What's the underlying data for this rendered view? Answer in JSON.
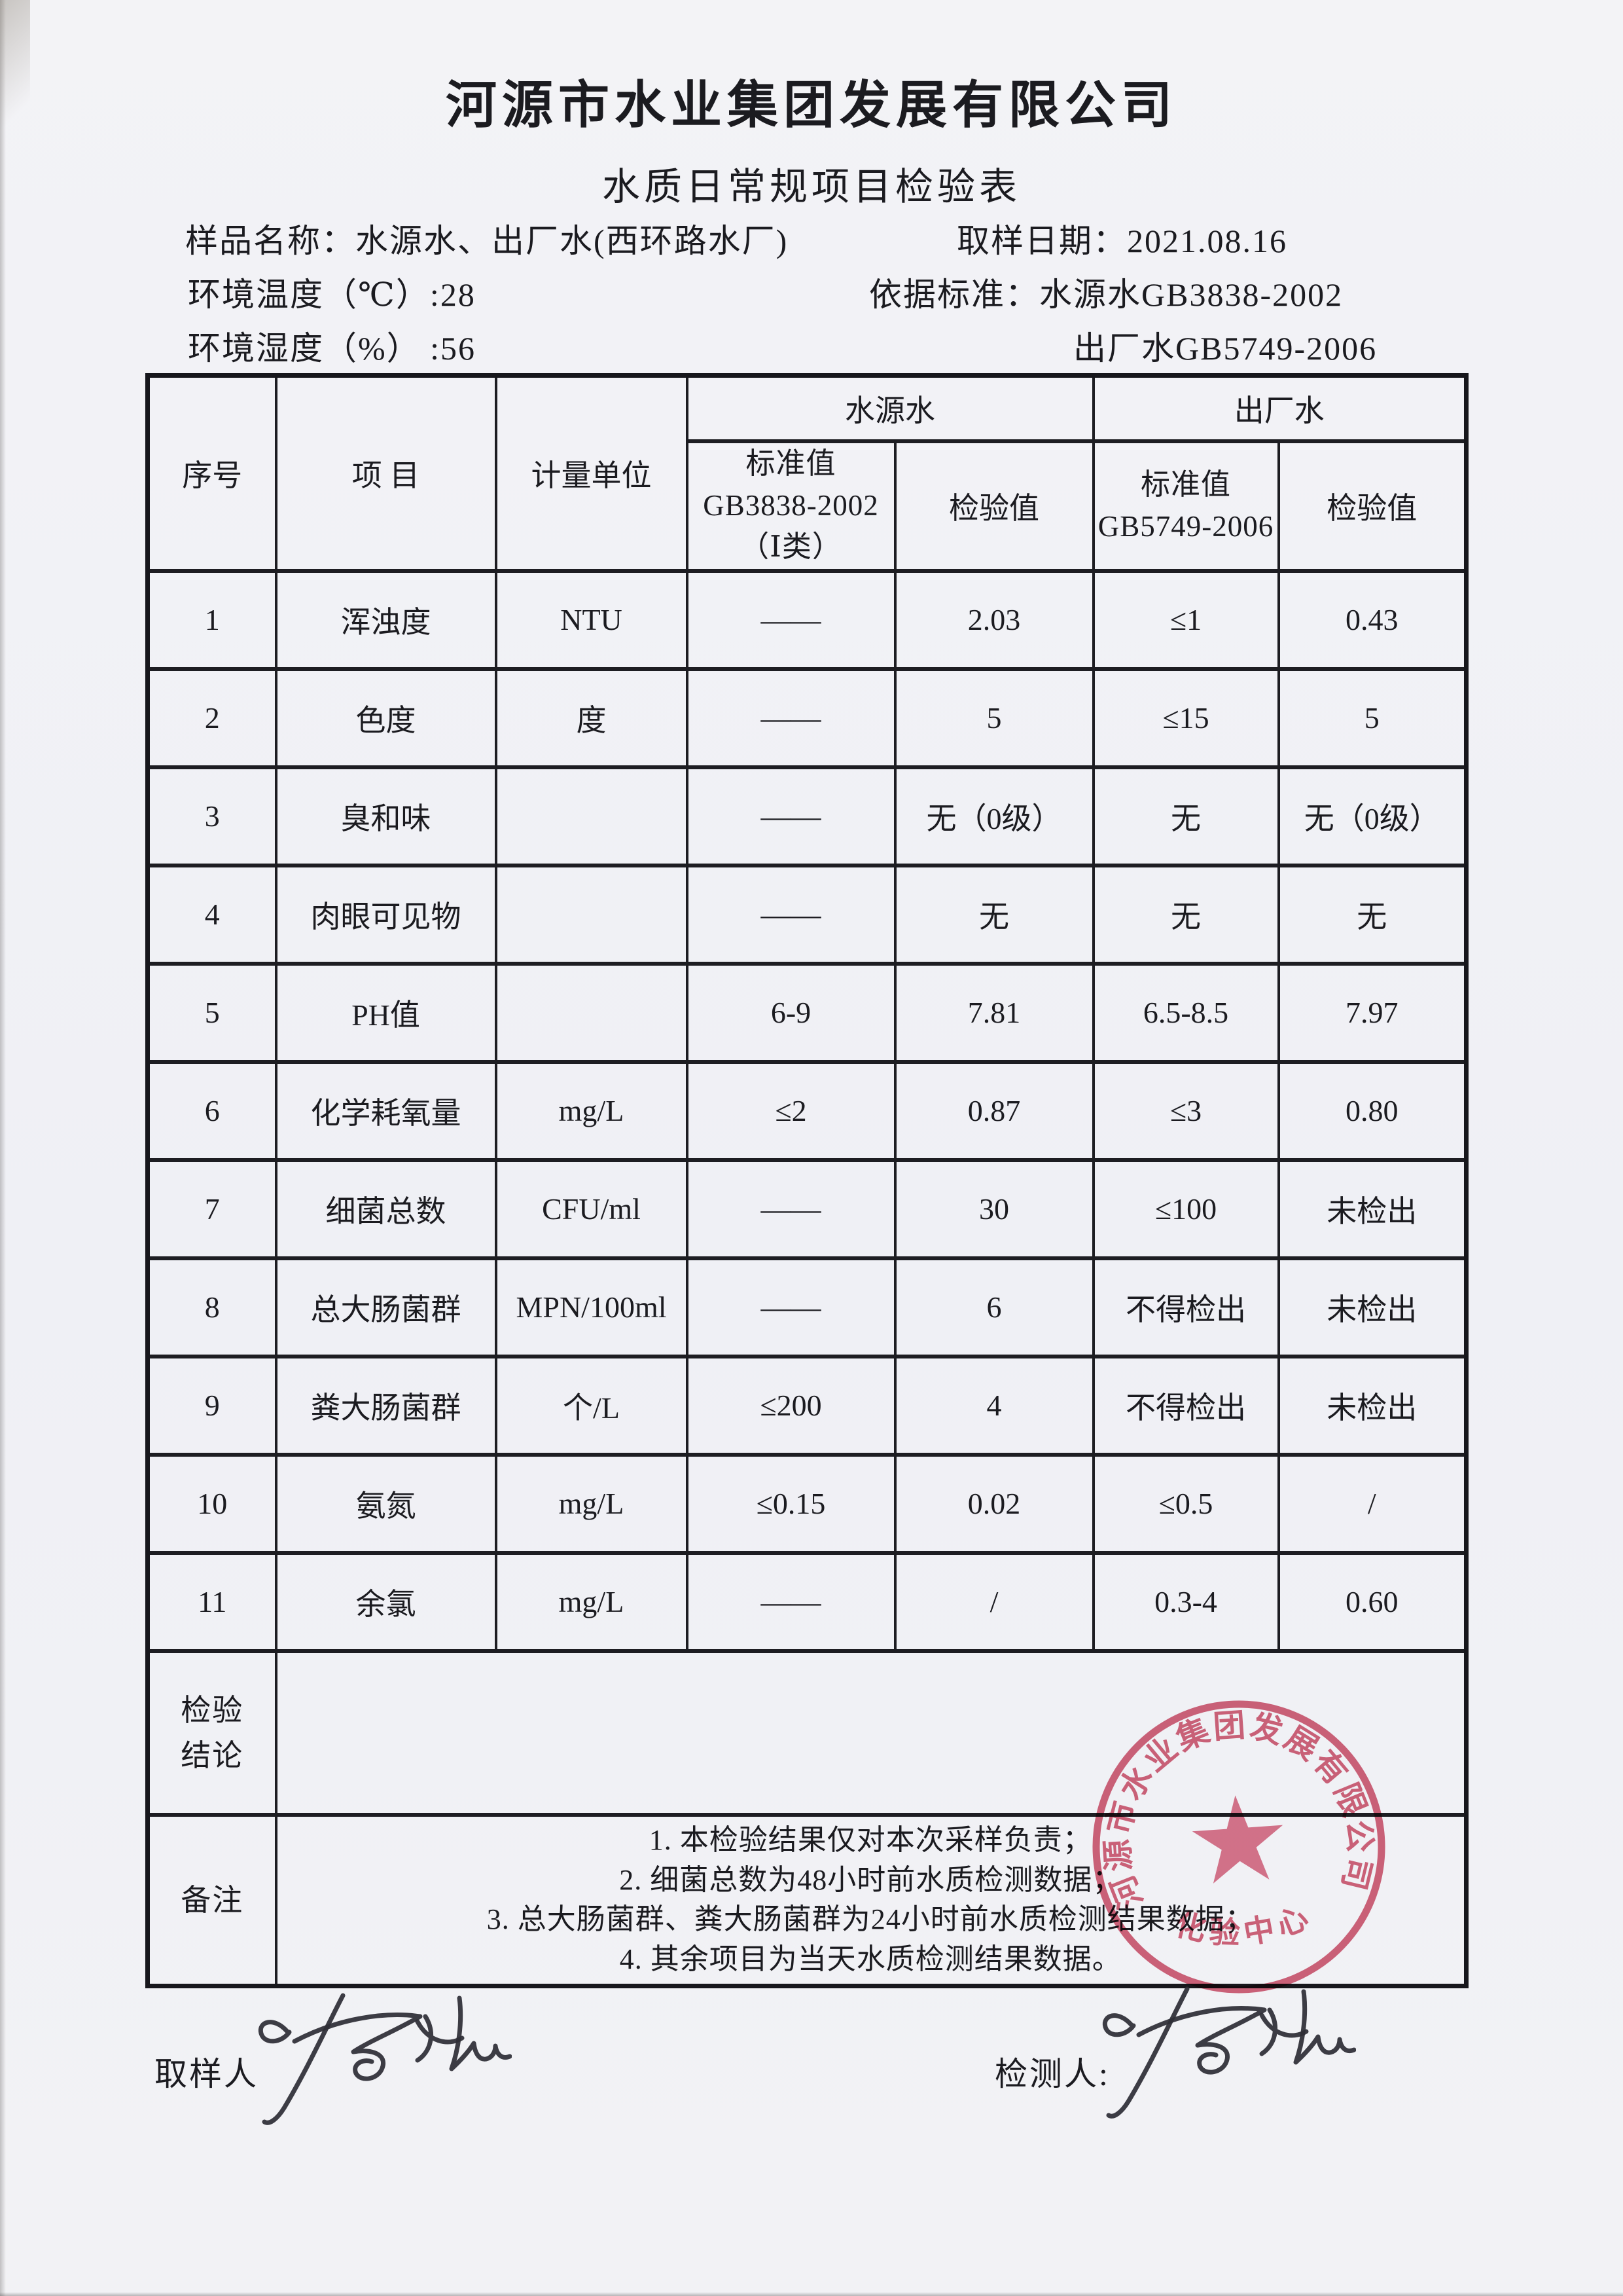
{
  "header": {
    "company": "河源市水业集团发展有限公司",
    "doc_title": "水质日常规项目检验表"
  },
  "info": {
    "sample_name": "样品名称：水源水、出厂水(西环路水厂)",
    "sample_date": "取样日期：2021.08.16",
    "env_temperature": "环境温度（℃）:28",
    "standard_basis": "依据标准：水源水GB3838-2002",
    "env_humidity": "环境湿度（%）  :56",
    "factory_standard": "出厂水GB5749-2006"
  },
  "table": {
    "headers": {
      "no": "序号",
      "item": "项  目",
      "unit": "计量单位",
      "group_source": "水源水",
      "group_factory": "出厂水",
      "std_source_line1": "标准值",
      "std_source_line2": "GB3838-2002",
      "std_source_line3": "（Ⅰ类）",
      "check_value_source": "检验值",
      "std_factory_line1": "标准值",
      "std_factory_line2": "GB5749-2006",
      "check_value_factory": "检验值"
    },
    "rows": [
      {
        "no": "1",
        "item": "浑浊度",
        "unit": "NTU",
        "std_source": "——",
        "val_source": "2.03",
        "std_factory": "≤1",
        "val_factory": "0.43"
      },
      {
        "no": "2",
        "item": "色度",
        "unit": "度",
        "std_source": "——",
        "val_source": "5",
        "std_factory": "≤15",
        "val_factory": "5"
      },
      {
        "no": "3",
        "item": "臭和味",
        "unit": "",
        "std_source": "——",
        "val_source": "无（0级）",
        "std_factory": "无",
        "val_factory": "无（0级）"
      },
      {
        "no": "4",
        "item": "肉眼可见物",
        "unit": "",
        "std_source": "——",
        "val_source": "无",
        "std_factory": "无",
        "val_factory": "无"
      },
      {
        "no": "5",
        "item": "PH值",
        "unit": "",
        "std_source": "6-9",
        "val_source": "7.81",
        "std_factory": "6.5-8.5",
        "val_factory": "7.97"
      },
      {
        "no": "6",
        "item": "化学耗氧量",
        "unit": "mg/L",
        "std_source": "≤2",
        "val_source": "0.87",
        "std_factory": "≤3",
        "val_factory": "0.80"
      },
      {
        "no": "7",
        "item": "细菌总数",
        "unit": "CFU/ml",
        "std_source": "——",
        "val_source": "30",
        "std_factory": "≤100",
        "val_factory": "未检出"
      },
      {
        "no": "8",
        "item": "总大肠菌群",
        "unit": "MPN/100ml",
        "std_source": "——",
        "val_source": "6",
        "std_factory": "不得检出",
        "val_factory": "未检出"
      },
      {
        "no": "9",
        "item": "粪大肠菌群",
        "unit": "个/L",
        "std_source": "≤200",
        "val_source": "4",
        "std_factory": "不得检出",
        "val_factory": "未检出"
      },
      {
        "no": "10",
        "item": "氨氮",
        "unit": "mg/L",
        "std_source": "≤0.15",
        "val_source": "0.02",
        "std_factory": "≤0.5",
        "val_factory": "/"
      },
      {
        "no": "11",
        "item": "余氯",
        "unit": "mg/L",
        "std_source": "——",
        "val_source": "/",
        "std_factory": "0.3-4",
        "val_factory": "0.60"
      }
    ]
  },
  "conclusion": {
    "label_line1": "检验",
    "label_line2": "结论",
    "value": ""
  },
  "remarks": {
    "label": "备注",
    "notes": [
      "1. 本检验结果仅对本次采样负责；",
      "2. 细菌总数为48小时前水质检测数据；",
      "3. 总大肠菌群、粪大肠菌群为24小时前水质检测结果数据；",
      "4. 其余项目为当天水质检测结果数据。"
    ]
  },
  "signatures": {
    "sampler_label": "取样人",
    "tester_label": "检测人:"
  },
  "stamp": {
    "company_arc": "河源市水业集团发展有限公司",
    "center_label": "化验中心",
    "color": "#cf4f6a"
  },
  "colors": {
    "paper": "#f1f2f6",
    "ink": "#1b1b20",
    "table_line": "#1d1d22",
    "stamp_red": "#cf4f6a"
  }
}
